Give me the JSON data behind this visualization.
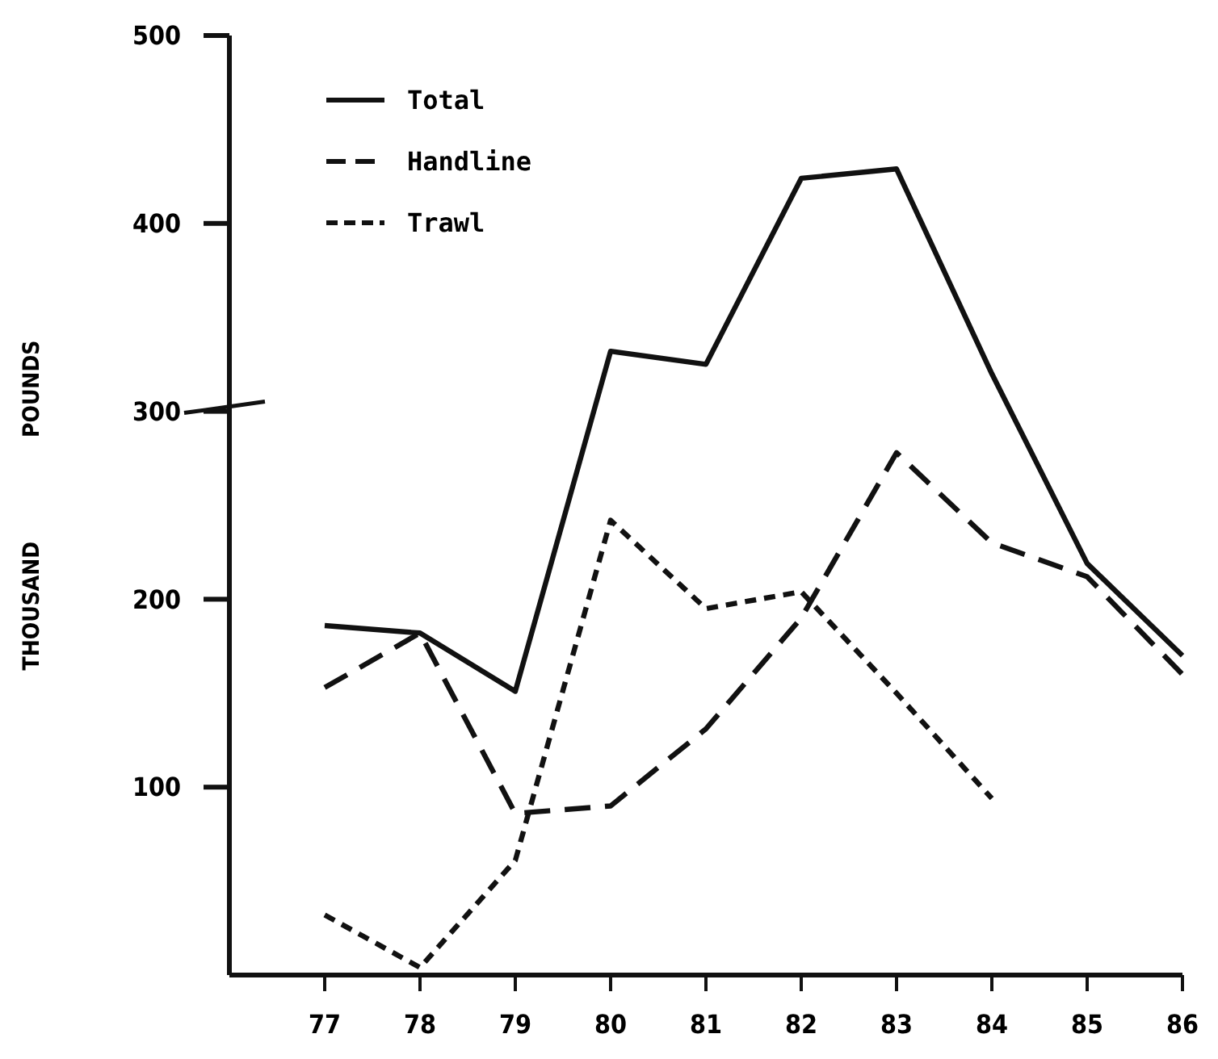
{
  "chart_data": {
    "type": "line",
    "ylabel": "THOUSAND POUNDS",
    "x": [
      77,
      78,
      79,
      80,
      81,
      82,
      83,
      84,
      85,
      86
    ],
    "xlim": [
      76,
      86
    ],
    "xticks": [
      77,
      78,
      79,
      80,
      81,
      82,
      83,
      84,
      85,
      86
    ],
    "ylim": [
      0,
      500
    ],
    "yticks": [
      100,
      200,
      300,
      400,
      500
    ],
    "legend": "top left",
    "grid": false,
    "marker": "none",
    "series": [
      {
        "name": "Total",
        "color": "#111111",
        "line_style": "solid",
        "values": [
          186,
          182,
          151,
          332,
          325,
          424,
          429,
          320,
          219,
          170
        ]
      },
      {
        "name": "Handline",
        "color": "#111111",
        "line_style": "dashed",
        "values": [
          153,
          182,
          86,
          90,
          131,
          190,
          278,
          230,
          212,
          160
        ]
      },
      {
        "name": "Trawl",
        "color": "#111111",
        "line_style": "dotted",
        "values": [
          32,
          4,
          61,
          242,
          195,
          204,
          150,
          94,
          null,
          null
        ]
      }
    ]
  }
}
